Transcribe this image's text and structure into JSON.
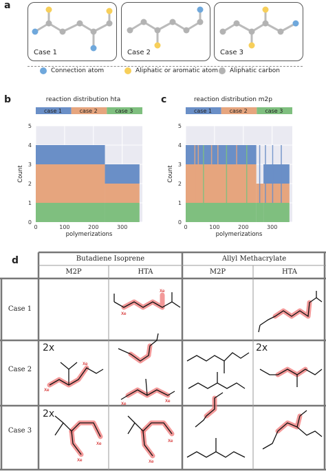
{
  "panel_a": {
    "letter": "a",
    "cases": [
      "Case 1",
      "Case 2",
      "Case 3"
    ],
    "legend": [
      {
        "label": "Connection atom",
        "color": "#6fa8dc"
      },
      {
        "label": "Aliphatic or aromatic atom",
        "color": "#f7cf5a"
      },
      {
        "label": "Aliphatic carbon",
        "color": "#b3b3b3"
      }
    ]
  },
  "panel_b_letter": "b",
  "panel_c_letter": "c",
  "panel_d_letter": "d",
  "chart_data": [
    {
      "type": "area",
      "title": "reaction distribution hta",
      "xlabel": "polymerizations",
      "ylabel": "Count",
      "xlim": [
        0,
        370
      ],
      "ylim": [
        0,
        5
      ],
      "xticks": [
        0,
        100,
        200,
        300
      ],
      "yticks": [
        0,
        1,
        2,
        3,
        4,
        5
      ],
      "grid": true,
      "legend_position": "top",
      "series": [
        {
          "name": "case 1",
          "color": "#6a8fc7",
          "segments": [
            {
              "x0": 0,
              "x1": 240,
              "value": 1
            },
            {
              "x0": 240,
              "x1": 360,
              "value": 1
            }
          ]
        },
        {
          "name": "case 2",
          "color": "#e6a57e",
          "segments": [
            {
              "x0": 0,
              "x1": 240,
              "value": 2
            },
            {
              "x0": 240,
              "x1": 360,
              "value": 1
            }
          ]
        },
        {
          "name": "case 3",
          "color": "#7fbf7f",
          "segments": [
            {
              "x0": 0,
              "x1": 240,
              "value": 1
            },
            {
              "x0": 240,
              "x1": 360,
              "value": 1
            }
          ]
        }
      ]
    },
    {
      "type": "area",
      "title": "reaction distribution m2p",
      "xlabel": "polymerizations",
      "ylabel": "Count",
      "xlim": [
        0,
        370
      ],
      "ylim": [
        0,
        5
      ],
      "xticks": [
        0,
        100,
        200,
        300
      ],
      "yticks": [
        0,
        1,
        2,
        3,
        4,
        5
      ],
      "grid": true,
      "legend_position": "top",
      "series": [
        {
          "name": "case 1",
          "color": "#6a8fc7",
          "segments": [
            {
              "x0": 0,
              "x1": 245,
              "value": 1
            },
            {
              "x0": 270,
              "x1": 360,
              "value": 1
            }
          ]
        },
        {
          "name": "case 2",
          "color": "#e6a57e",
          "segments": [
            {
              "x0": 0,
              "x1": 245,
              "value": 2
            },
            {
              "x0": 245,
              "x1": 360,
              "value": 1
            }
          ]
        },
        {
          "name": "case 3",
          "color": "#7fbf7f",
          "segments": [
            {
              "x0": 0,
              "x1": 360,
              "value": 1
            }
          ]
        }
      ],
      "stripes": [
        {
          "x": 30,
          "color": "#e6a57e"
        },
        {
          "x": 42,
          "color": "#e6a57e"
        },
        {
          "x": 60,
          "color": "#7fbf7f"
        },
        {
          "x": 88,
          "color": "#e6a57e"
        },
        {
          "x": 110,
          "color": "#e6a57e"
        },
        {
          "x": 140,
          "color": "#7fbf7f"
        },
        {
          "x": 175,
          "color": "#e6a57e"
        },
        {
          "x": 210,
          "color": "#7fbf7f"
        },
        {
          "x": 255,
          "color": "#6a8fc7"
        },
        {
          "x": 275,
          "color": "#6a8fc7"
        },
        {
          "x": 300,
          "color": "#6a8fc7"
        },
        {
          "x": 330,
          "color": "#6a8fc7"
        }
      ]
    }
  ],
  "table": {
    "group_headers": [
      "Butadiene Isoprene",
      "Allyl Methacrylate"
    ],
    "sub_headers": [
      "M2P",
      "HTA",
      "M2P",
      "HTA"
    ],
    "row_headers": [
      "Case 1",
      "Case 2",
      "Case 3"
    ],
    "multipliers": [
      "2x",
      "2x",
      "2x"
    ],
    "atom_labels": [
      "Xe",
      "Xe",
      "Xe",
      "Xe",
      "Xe",
      "Xe",
      "Xe",
      "Xe",
      "Xe",
      "Xe"
    ]
  }
}
